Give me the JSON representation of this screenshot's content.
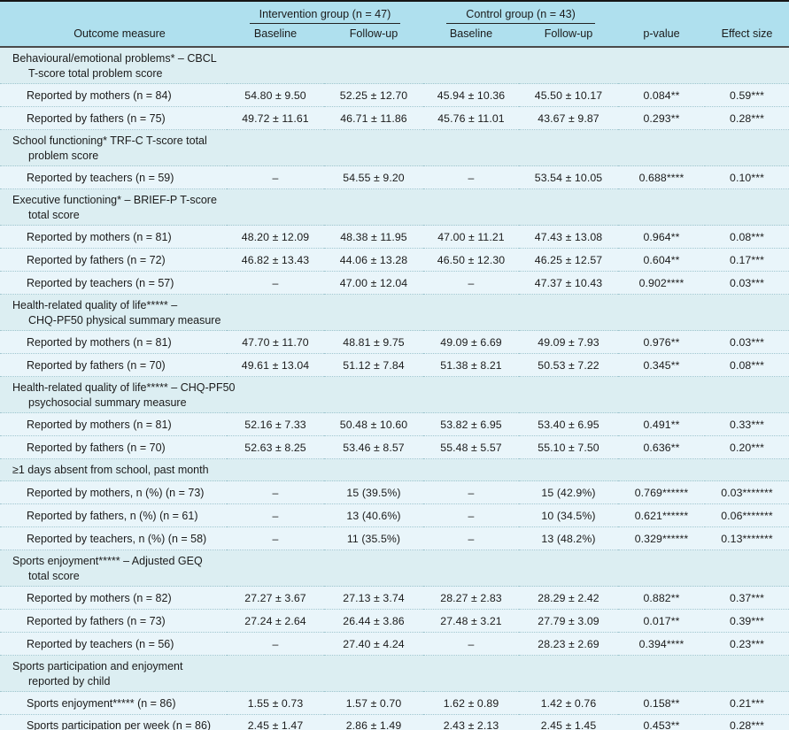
{
  "table": {
    "columns": {
      "outcome": "Outcome measure",
      "group1": "Intervention group (n = 47)",
      "group2": "Control group (n = 43)",
      "sub1": "Baseline",
      "sub2": "Follow-up",
      "sub3": "Baseline",
      "sub4": "Follow-up",
      "pvalue": "p-value",
      "effect": "Effect size"
    },
    "colors": {
      "header_band": "#afe0ee",
      "section_row_bg": "#dceef2",
      "data_row_bg": "#e9f5fa",
      "border_dark": "#161616",
      "dotted_divider": "#a0c6cf",
      "text": "#1b1b1b"
    },
    "sections": [
      {
        "title_line1": "Behavioural/emotional problems* – CBCL",
        "title_line2": "T-score total problem score",
        "rows": [
          {
            "label": "Reported by mothers (n = 84)",
            "values": [
              "54.80 ± 9.50",
              "52.25 ± 12.70",
              "45.94 ± 10.36",
              "45.50 ± 10.17",
              "0.084**",
              "0.59***"
            ]
          },
          {
            "label": "Reported by fathers (n = 75)",
            "values": [
              "49.72 ± 11.61",
              "46.71 ± 11.86",
              "45.76 ± 11.01",
              "43.67 ± 9.87",
              "0.293**",
              "0.28***"
            ]
          }
        ]
      },
      {
        "title_line1": "School functioning* TRF-C T-score total",
        "title_line2": "problem score",
        "rows": [
          {
            "label": "Reported by teachers (n = 59)",
            "values": [
              "–",
              "54.55 ± 9.20",
              "–",
              "53.54 ± 10.05",
              "0.688****",
              "0.10***"
            ]
          }
        ]
      },
      {
        "title_line1": "Executive functioning* – BRIEF-P T-score",
        "title_line2": "total score",
        "rows": [
          {
            "label": "Reported by mothers (n = 81)",
            "values": [
              "48.20 ± 12.09",
              "48.38 ± 11.95",
              "47.00 ± 11.21",
              "47.43 ± 13.08",
              "0.964**",
              "0.08***"
            ]
          },
          {
            "label": "Reported by fathers (n = 72)",
            "values": [
              "46.82 ± 13.43",
              "44.06 ± 13.28",
              "46.50 ± 12.30",
              "46.25 ± 12.57",
              "0.604**",
              "0.17***"
            ]
          },
          {
            "label": "Reported by teachers (n = 57)",
            "values": [
              "–",
              "47.00 ± 12.04",
              "–",
              "47.37 ± 10.43",
              "0.902****",
              "0.03***"
            ]
          }
        ]
      },
      {
        "title_line1": "Health-related quality of life***** –",
        "title_line2": "CHQ-PF50 physical summary measure",
        "rows": [
          {
            "label": "Reported by mothers (n = 81)",
            "values": [
              "47.70 ± 11.70",
              "48.81 ± 9.75",
              "49.09 ± 6.69",
              "49.09 ± 7.93",
              "0.976**",
              "0.03***"
            ]
          },
          {
            "label": "Reported by fathers (n = 70)",
            "values": [
              "49.61 ± 13.04",
              "51.12 ± 7.84",
              "51.38 ± 8.21",
              "50.53 ± 7.22",
              "0.345**",
              "0.08***"
            ]
          }
        ]
      },
      {
        "title_line1": "Health-related quality of life***** – CHQ-PF50",
        "title_line2": "psychosocial summary measure",
        "rows": [
          {
            "label": "Reported by mothers (n = 81)",
            "values": [
              "52.16 ± 7.33",
              "50.48 ± 10.60",
              "53.82 ± 6.95",
              "53.40 ± 6.95",
              "0.491**",
              "0.33***"
            ]
          },
          {
            "label": "Reported by fathers (n = 70)",
            "values": [
              "52.63 ± 8.25",
              "53.46 ± 8.57",
              "55.48 ± 5.57",
              "55.10 ± 7.50",
              "0.636**",
              "0.20***"
            ]
          }
        ]
      },
      {
        "title_line1": "≥1 days absent from school, past month",
        "title_line2": "",
        "rows": [
          {
            "label": "Reported by mothers, n (%) (n = 73)",
            "values": [
              "–",
              "15 (39.5%)",
              "–",
              "15 (42.9%)",
              "0.769******",
              "0.03*******"
            ]
          },
          {
            "label": "Reported by fathers, n (%) (n = 61)",
            "values": [
              "–",
              "13 (40.6%)",
              "–",
              "10 (34.5%)",
              "0.621******",
              "0.06*******"
            ]
          },
          {
            "label": "Reported by teachers, n (%) (n = 58)",
            "values": [
              "–",
              "11 (35.5%)",
              "–",
              "13 (48.2%)",
              "0.329******",
              "0.13*******"
            ]
          }
        ]
      },
      {
        "title_line1": "Sports enjoyment***** – Adjusted GEQ",
        "title_line2": "total score",
        "rows": [
          {
            "label": "Reported by mothers (n = 82)",
            "values": [
              "27.27 ± 3.67",
              "27.13 ± 3.74",
              "28.27 ± 2.83",
              "28.29 ± 2.42",
              "0.882**",
              "0.37***"
            ]
          },
          {
            "label": "Reported by fathers (n = 73)",
            "values": [
              "27.24 ± 2.64",
              "26.44 ± 3.86",
              "27.48 ± 3.21",
              "27.79 ± 3.09",
              "0.017**",
              "0.39***"
            ]
          },
          {
            "label": "Reported by teachers (n = 56)",
            "values": [
              "–",
              "27.40 ± 4.24",
              "–",
              "28.23 ± 2.69",
              "0.394****",
              "0.23***"
            ]
          }
        ]
      },
      {
        "title_line1": "Sports participation and enjoyment",
        "title_line2": "reported by child",
        "rows": [
          {
            "label": "Sports enjoyment***** (n = 86)",
            "values": [
              "1.55 ± 0.73",
              "1.57 ± 0.70",
              "1.62 ± 0.89",
              "1.42 ± 0.76",
              "0.158**",
              "0.21***"
            ]
          },
          {
            "label": "Sports participation per week (n = 86)",
            "values": [
              "2.45 ± 1.47",
              "2.86 ± 1.49",
              "2.43 ± 2.13",
              "2.45 ± 1.45",
              "0.453**",
              "0.28***"
            ]
          }
        ]
      }
    ]
  }
}
